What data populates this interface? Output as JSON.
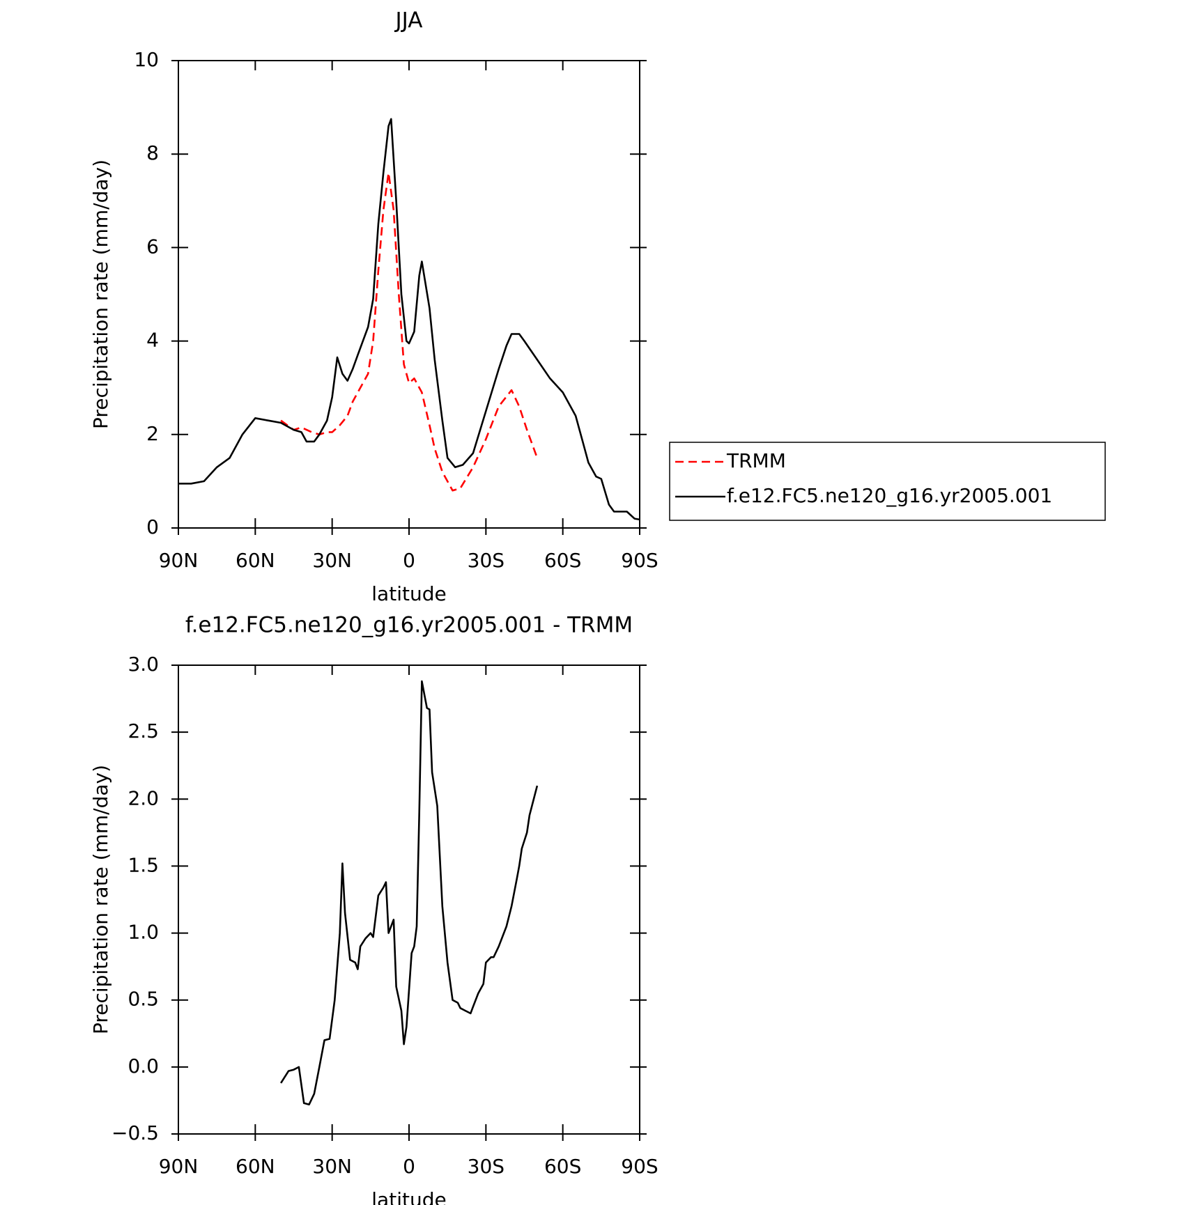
{
  "chart_data": [
    {
      "type": "line",
      "title": "JJA",
      "xlabel": "latitude",
      "ylabel": "Precipitation rate (mm/day)",
      "xlim": [
        90,
        -90
      ],
      "xticks": [
        {
          "value": 90,
          "label": "90N"
        },
        {
          "value": 60,
          "label": "60N"
        },
        {
          "value": 30,
          "label": "30N"
        },
        0,
        {
          "value": -30,
          "label": "30S"
        },
        {
          "value": -60,
          "label": "60S"
        },
        {
          "value": -90,
          "label": "90S"
        }
      ],
      "ylim": [
        0,
        10
      ],
      "yticks": [
        0,
        2,
        4,
        6,
        8,
        10
      ],
      "legend": "right",
      "series": [
        {
          "name": "TRMM",
          "color": "#ff0000",
          "style": "dashed",
          "x": [
            50,
            45,
            42,
            38,
            35,
            32,
            30,
            27,
            24,
            22,
            20,
            16,
            14,
            12,
            10,
            8,
            6,
            4,
            2,
            0,
            -2,
            -5,
            -8,
            -10,
            -13,
            -17,
            -20,
            -25,
            -30,
            -35,
            -40,
            -43,
            -46,
            -50
          ],
          "values": [
            2.3,
            2.1,
            2.15,
            2.05,
            2.0,
            2.05,
            2.05,
            2.2,
            2.4,
            2.7,
            2.9,
            3.3,
            4.0,
            5.5,
            6.8,
            7.6,
            6.8,
            5.0,
            3.5,
            3.1,
            3.2,
            2.9,
            2.2,
            1.7,
            1.2,
            0.8,
            0.85,
            1.3,
            1.9,
            2.6,
            2.95,
            2.6,
            2.1,
            1.5
          ]
        },
        {
          "name": "f.e12.FC5.ne120_g16.yr2005.001",
          "color": "#000000",
          "style": "solid",
          "x": [
            90,
            85,
            80,
            75,
            70,
            65,
            60,
            55,
            50,
            45,
            42,
            40,
            37,
            35,
            32,
            30,
            28,
            26,
            24,
            22,
            20,
            18,
            16,
            14,
            12,
            10,
            8,
            7,
            5,
            3,
            1,
            0,
            -2,
            -4,
            -5,
            -8,
            -10,
            -13,
            -15,
            -18,
            -21,
            -25,
            -30,
            -35,
            -38,
            -40,
            -43,
            -45,
            -50,
            -55,
            -60,
            -65,
            -68,
            -70,
            -73,
            -75,
            -78,
            -80,
            -85,
            -88,
            -90
          ],
          "values": [
            0.95,
            0.95,
            1.0,
            1.3,
            1.5,
            2.0,
            2.35,
            2.3,
            2.25,
            2.1,
            2.05,
            1.85,
            1.85,
            2.0,
            2.3,
            2.8,
            3.65,
            3.3,
            3.15,
            3.4,
            3.7,
            4.0,
            4.3,
            4.9,
            6.5,
            7.6,
            8.6,
            8.75,
            7.0,
            5.0,
            4.0,
            3.95,
            4.2,
            5.4,
            5.7,
            4.7,
            3.6,
            2.3,
            1.5,
            1.3,
            1.35,
            1.6,
            2.5,
            3.4,
            3.9,
            4.15,
            4.15,
            4.0,
            3.6,
            3.2,
            2.9,
            2.4,
            1.8,
            1.4,
            1.1,
            1.05,
            0.5,
            0.35,
            0.35,
            0.2,
            0.18
          ]
        }
      ]
    },
    {
      "type": "line",
      "title": "f.e12.FC5.ne120_g16.yr2005.001 - TRMM",
      "xlabel": "latitude",
      "ylabel": "Precipitation rate (mm/day)",
      "xlim": [
        90,
        -90
      ],
      "xticks": [
        {
          "value": 90,
          "label": "90N"
        },
        {
          "value": 60,
          "label": "60N"
        },
        {
          "value": 30,
          "label": "30N"
        },
        0,
        {
          "value": -30,
          "label": "30S"
        },
        {
          "value": -60,
          "label": "60S"
        },
        {
          "value": -90,
          "label": "90S"
        }
      ],
      "ylim": [
        -0.5,
        3.0
      ],
      "yticks": [
        {
          "value": -0.5,
          "label": "−0.5"
        },
        {
          "value": 0,
          "label": "0.0"
        },
        0.5,
        {
          "value": 1,
          "label": "1.0"
        },
        1.5,
        {
          "value": 2,
          "label": "2.0"
        },
        2.5,
        {
          "value": 3,
          "label": "3.0"
        }
      ],
      "series": [
        {
          "color": "#000000",
          "style": "solid",
          "x": [
            50,
            47,
            45,
            43,
            41,
            39,
            37,
            35,
            33,
            31,
            29,
            27,
            26,
            25,
            23,
            21,
            20,
            19,
            17,
            15,
            14,
            12,
            10,
            9,
            8,
            6,
            5,
            3,
            2,
            1,
            -1,
            -2,
            -3,
            -4,
            -5,
            -7,
            -8,
            -9,
            -11,
            -13,
            -15,
            -17,
            -19,
            -20,
            -22,
            -24,
            -25,
            -27,
            -29,
            -30,
            -32,
            -33,
            -35,
            -38,
            -40,
            -42,
            -43,
            -44,
            -46,
            -47,
            -50
          ],
          "values": [
            -0.12,
            -0.03,
            -0.02,
            0.0,
            -0.27,
            -0.28,
            -0.2,
            0.0,
            0.2,
            0.21,
            0.5,
            1.0,
            1.52,
            1.15,
            0.8,
            0.78,
            0.73,
            0.9,
            0.96,
            1.0,
            0.97,
            1.28,
            1.34,
            1.38,
            1.0,
            1.1,
            0.6,
            0.42,
            0.17,
            0.3,
            0.85,
            0.9,
            1.05,
            1.9,
            2.88,
            2.68,
            2.67,
            2.2,
            1.95,
            1.2,
            0.78,
            0.5,
            0.48,
            0.44,
            0.42,
            0.4,
            0.45,
            0.55,
            0.62,
            0.78,
            0.82,
            0.82,
            0.9,
            1.05,
            1.2,
            1.4,
            1.5,
            1.63,
            1.75,
            1.88,
            2.1
          ]
        }
      ]
    }
  ]
}
